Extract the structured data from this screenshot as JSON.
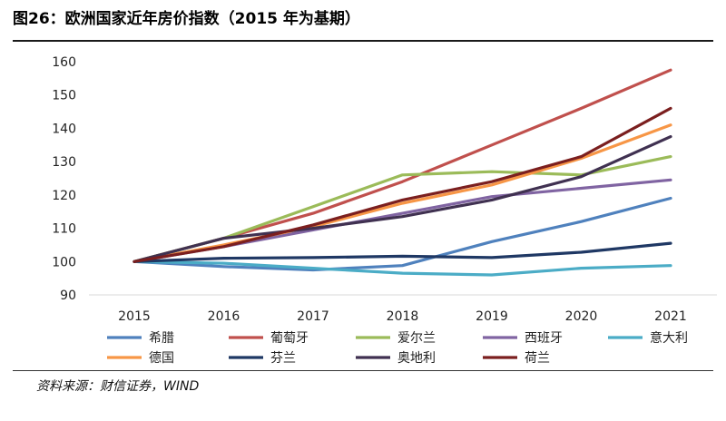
{
  "header": {
    "title": "图26：欧洲国家近年房价指数（2015 年为基期）"
  },
  "footer": {
    "source": "资料来源：财信证券，WIND"
  },
  "chart_data": {
    "type": "line",
    "title": "",
    "xlabel": "",
    "ylabel": "",
    "x": [
      "2015",
      "2016",
      "2017",
      "2018",
      "2019",
      "2020",
      "2021"
    ],
    "ylim": [
      90,
      160
    ],
    "yticks": [
      90,
      100,
      110,
      120,
      130,
      140,
      150,
      160
    ],
    "grid": false,
    "legend_position": "bottom",
    "series": [
      {
        "name": "希腊",
        "color": "#4f81bd",
        "values": [
          100,
          98.5,
          97.5,
          98.8,
          106,
          112,
          119
        ]
      },
      {
        "name": "葡萄牙",
        "color": "#c0504d",
        "values": [
          100,
          107,
          114.5,
          124,
          135,
          146,
          157.5
        ]
      },
      {
        "name": "爱尔兰",
        "color": "#9bbb59",
        "values": [
          100,
          107,
          116.5,
          126,
          127,
          126,
          131.5
        ]
      },
      {
        "name": "西班牙",
        "color": "#8064a2",
        "values": [
          100,
          104.5,
          109.5,
          114.5,
          119.5,
          122,
          124.5
        ]
      },
      {
        "name": "意大利",
        "color": "#4bacc6",
        "values": [
          100,
          99.5,
          98,
          96.5,
          96,
          98,
          98.8
        ]
      },
      {
        "name": "德国",
        "color": "#f79646",
        "values": [
          100,
          105,
          110.5,
          117.5,
          123,
          131,
          141
        ]
      },
      {
        "name": "芬兰",
        "color": "#1f3864",
        "values": [
          100,
          101,
          101.2,
          101.6,
          101.2,
          102.8,
          105.5
        ]
      },
      {
        "name": "奥地利",
        "color": "#403151",
        "values": [
          100,
          107,
          110,
          113.5,
          118.5,
          125.5,
          137.5
        ]
      },
      {
        "name": "荷兰",
        "color": "#7b1f1f",
        "values": [
          100,
          104.5,
          111,
          118.5,
          124,
          131.5,
          146
        ]
      }
    ]
  }
}
